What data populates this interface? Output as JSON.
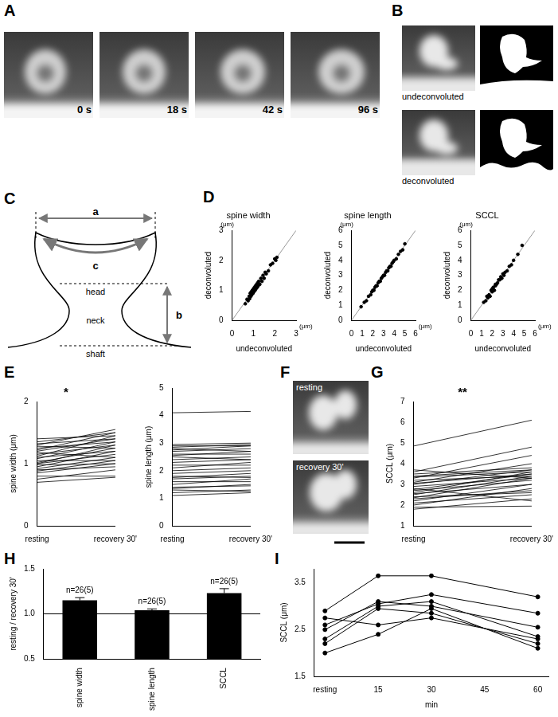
{
  "images": [
    {
      "panel": "A",
      "labels": [
        "0 s",
        "18 s",
        "42 s",
        "96 s"
      ]
    },
    {
      "panel": "B",
      "labels": [
        "undeconvoluted",
        "deconvoluted"
      ]
    },
    {
      "panel": "F",
      "labels": [
        "resting",
        "recovery 30'"
      ]
    }
  ],
  "diagram": {
    "panel": "C",
    "dimensions": [
      "a",
      "b",
      "c"
    ],
    "regions": [
      "head",
      "neck",
      "shaft"
    ]
  },
  "chart_data": [
    {
      "panel": "D",
      "type": "scatter",
      "title": "spine width",
      "x_label": "undeconvoluted",
      "y_label": "deconvoluted",
      "x_unit": "(μm)",
      "y_unit": "(μm)",
      "color": "#000000",
      "grid": false,
      "x": [
        0.62,
        0.7,
        0.75,
        0.8,
        0.82,
        0.85,
        0.88,
        0.9,
        0.92,
        0.95,
        0.98,
        1.0,
        1.02,
        1.05,
        1.08,
        1.1,
        1.12,
        1.15,
        1.18,
        1.2,
        1.22,
        1.25,
        1.3,
        1.35,
        1.4,
        1.45,
        1.5,
        1.55,
        1.6,
        1.7,
        1.8,
        1.9,
        2.0,
        2.05,
        2.1
      ],
      "values": [
        0.55,
        0.7,
        0.65,
        0.8,
        0.72,
        0.9,
        0.8,
        0.95,
        0.85,
        1.0,
        0.9,
        1.05,
        0.95,
        1.1,
        1.0,
        1.15,
        1.05,
        1.2,
        1.1,
        1.25,
        1.15,
        1.3,
        1.2,
        1.4,
        1.3,
        1.5,
        1.4,
        1.6,
        1.55,
        1.65,
        1.85,
        1.9,
        2.05,
        2.0,
        2.1
      ],
      "reference_line": {
        "x": [
          0,
          3
        ],
        "values": [
          0,
          3
        ],
        "color": "#999999"
      },
      "xlim": [
        0,
        3
      ],
      "ylim": [
        0,
        3
      ],
      "xticks": [
        0,
        1,
        2,
        3
      ],
      "yticks": [
        0,
        1,
        2,
        3
      ]
    },
    {
      "panel": "D",
      "type": "scatter",
      "title": "spine length",
      "x_label": "undeconvoluted",
      "y_label": "deconvoluted",
      "x_unit": "(μm)",
      "y_unit": "(μm)",
      "color": "#000000",
      "grid": false,
      "x": [
        0.9,
        1.2,
        1.4,
        1.6,
        1.8,
        1.9,
        2.0,
        2.1,
        2.2,
        2.3,
        2.4,
        2.5,
        2.6,
        2.7,
        2.8,
        2.9,
        3.0,
        3.1,
        3.2,
        3.3,
        3.4,
        3.5,
        3.6,
        3.7,
        3.8,
        3.9,
        4.0,
        4.2,
        4.4,
        4.6,
        4.8,
        5.0
      ],
      "values": [
        0.9,
        1.2,
        1.3,
        1.6,
        1.7,
        1.9,
        2.0,
        2.0,
        2.2,
        2.3,
        2.3,
        2.5,
        2.6,
        2.6,
        2.8,
        2.9,
        3.0,
        3.0,
        3.2,
        3.3,
        3.3,
        3.5,
        3.6,
        3.6,
        3.8,
        3.9,
        4.0,
        4.1,
        4.4,
        4.6,
        4.7,
        5.1
      ],
      "reference_line": {
        "x": [
          0,
          6
        ],
        "values": [
          0,
          6
        ],
        "color": "#999999"
      },
      "xlim": [
        0,
        6
      ],
      "ylim": [
        0,
        6
      ],
      "xticks": [
        0,
        1,
        2,
        3,
        4,
        5,
        6
      ],
      "yticks": [
        0,
        1,
        2,
        3,
        4,
        5,
        6
      ]
    },
    {
      "panel": "D",
      "type": "scatter",
      "title": "SCCL",
      "x_label": "undeconvoluted",
      "y_label": "deconvoluted",
      "x_unit": "(μm)",
      "y_unit": "(μm)",
      "color": "#000000",
      "grid": false,
      "x": [
        1.2,
        1.4,
        1.5,
        1.6,
        1.7,
        1.8,
        1.9,
        2.0,
        2.0,
        2.1,
        2.2,
        2.3,
        2.3,
        2.4,
        2.5,
        2.6,
        2.7,
        2.8,
        2.9,
        3.0,
        3.1,
        3.2,
        3.4,
        3.6,
        3.8,
        4.0,
        4.4,
        4.8
      ],
      "values": [
        1.2,
        1.3,
        1.6,
        1.5,
        1.7,
        1.6,
        2.0,
        1.9,
        2.1,
        2.2,
        2.0,
        2.3,
        2.4,
        2.4,
        2.5,
        2.7,
        2.7,
        2.9,
        2.8,
        3.1,
        3.0,
        3.2,
        3.3,
        3.6,
        3.7,
        4.0,
        4.4,
        5.0
      ],
      "reference_line": {
        "x": [
          0,
          6
        ],
        "values": [
          0,
          6
        ],
        "color": "#999999"
      },
      "xlim": [
        0,
        6
      ],
      "ylim": [
        0,
        6
      ],
      "xticks": [
        0,
        1,
        2,
        3,
        4,
        5,
        6
      ],
      "yticks": [
        0,
        1,
        2,
        3,
        4,
        5,
        6
      ]
    },
    {
      "panel": "E",
      "type": "line",
      "y_label": "spine width (μm)",
      "annotation": "*",
      "color": "#000000",
      "grid": false,
      "categories": [
        "resting",
        "recovery 30'"
      ],
      "values": [
        [
          0.7,
          0.75,
          0.8,
          0.85,
          0.88,
          0.9,
          0.92,
          0.95,
          0.98,
          1.0,
          1.0,
          1.02,
          1.05,
          1.08,
          1.1,
          1.12,
          1.15,
          1.18,
          1.2,
          1.22,
          1.25,
          1.28,
          1.3,
          1.32,
          1.35,
          1.4
        ],
        [
          0.78,
          0.9,
          0.8,
          1.0,
          1.05,
          0.95,
          1.1,
          1.2,
          1.0,
          1.15,
          1.3,
          1.25,
          1.05,
          1.35,
          1.2,
          1.45,
          1.3,
          1.1,
          1.4,
          1.5,
          1.35,
          1.25,
          1.55,
          1.4,
          1.5,
          1.45
        ]
      ],
      "ylim": [
        0,
        2
      ],
      "yticks": [
        0,
        1,
        2
      ]
    },
    {
      "panel": "E",
      "type": "line",
      "y_label": "spine length (μm)",
      "color": "#000000",
      "grid": false,
      "categories": [
        "resting",
        "recovery 30'"
      ],
      "values": [
        [
          1.1,
          1.2,
          1.3,
          1.35,
          1.4,
          1.5,
          1.6,
          1.7,
          1.75,
          1.8,
          1.9,
          2.0,
          2.1,
          2.2,
          2.3,
          2.4,
          2.5,
          2.55,
          2.6,
          2.7,
          2.75,
          2.8,
          2.85,
          2.9,
          2.95,
          4.1
        ],
        [
          1.2,
          1.3,
          1.25,
          1.5,
          1.45,
          1.7,
          1.6,
          1.8,
          1.9,
          1.75,
          2.0,
          2.1,
          2.3,
          2.2,
          2.4,
          2.5,
          2.4,
          2.7,
          2.6,
          2.8,
          2.9,
          2.7,
          2.95,
          2.9,
          3.0,
          4.15
        ]
      ],
      "ylim": [
        0,
        5
      ],
      "yticks": [
        0,
        1,
        2,
        3,
        4,
        5
      ]
    },
    {
      "panel": "G",
      "type": "line",
      "y_label": "SCCL (μm)",
      "annotation": "**",
      "color": "#000000",
      "grid": false,
      "categories": [
        "resting",
        "recovery 30'"
      ],
      "values": [
        [
          1.8,
          1.9,
          2.0,
          2.1,
          2.2,
          2.3,
          2.35,
          2.4,
          2.5,
          2.55,
          2.6,
          2.7,
          2.75,
          2.8,
          2.9,
          3.0,
          3.05,
          3.1,
          3.2,
          3.3,
          3.35,
          3.4,
          3.5,
          3.6,
          3.7,
          4.85
        ],
        [
          2.3,
          1.95,
          2.8,
          2.5,
          3.0,
          2.7,
          3.3,
          2.6,
          3.4,
          3.0,
          3.6,
          3.2,
          3.5,
          2.2,
          3.3,
          3.7,
          3.5,
          4.0,
          3.4,
          4.4,
          3.6,
          3.7,
          3.8,
          4.8,
          3.3,
          6.1
        ]
      ],
      "ylim": [
        1,
        7
      ],
      "yticks": [
        1,
        2,
        3,
        4,
        5,
        6,
        7
      ]
    },
    {
      "panel": "H",
      "type": "bar",
      "y_label": "resting / recovery 30'",
      "color": "#000000",
      "grid": false,
      "categories": [
        "spine width",
        "spine length",
        "SCCL"
      ],
      "values": [
        1.15,
        1.04,
        1.23
      ],
      "errors": [
        0.03,
        0.015,
        0.05
      ],
      "annotations": [
        "n=26(5)",
        "n=26(5)",
        "n=26(5)"
      ],
      "reference_y": 1,
      "ylim": [
        0.5,
        1.5
      ],
      "yticks": [
        0.5,
        {
          "value": 1,
          "label": "1.0"
        },
        1.5
      ]
    },
    {
      "panel": "I",
      "type": "line",
      "y_label": "SCCL (μm)",
      "x_label": "min",
      "grid": false,
      "x": [
        0,
        15,
        30,
        60
      ],
      "series": [
        {
          "color": "#000000",
          "marker": "circle",
          "values": [
            2.9,
            3.65,
            3.65,
            3.2
          ]
        },
        {
          "color": "#000000",
          "marker": "circle",
          "values": [
            2.6,
            3.05,
            3.25,
            2.85
          ]
        },
        {
          "color": "#000000",
          "marker": "circle",
          "values": [
            2.5,
            3.1,
            3.0,
            2.55
          ]
        },
        {
          "color": "#000000",
          "marker": "circle",
          "values": [
            2.3,
            3.0,
            3.1,
            2.35
          ]
        },
        {
          "color": "#000000",
          "marker": "circle",
          "values": [
            2.2,
            2.95,
            2.85,
            2.2
          ]
        },
        {
          "color": "#000000",
          "marker": "circle",
          "values": [
            2.0,
            2.4,
            2.95,
            2.1
          ]
        },
        {
          "color": "#000000",
          "marker": "circle",
          "values": [
            2.75,
            2.6,
            2.75,
            2.3
          ]
        }
      ],
      "xlim": [
        -3,
        63
      ],
      "xticks": [
        {
          "value": 0,
          "label": "resting"
        },
        15,
        30,
        45,
        60
      ],
      "ylim": [
        1.5,
        3.8
      ],
      "yticks": [
        1.5,
        2.5,
        3.5
      ]
    }
  ]
}
